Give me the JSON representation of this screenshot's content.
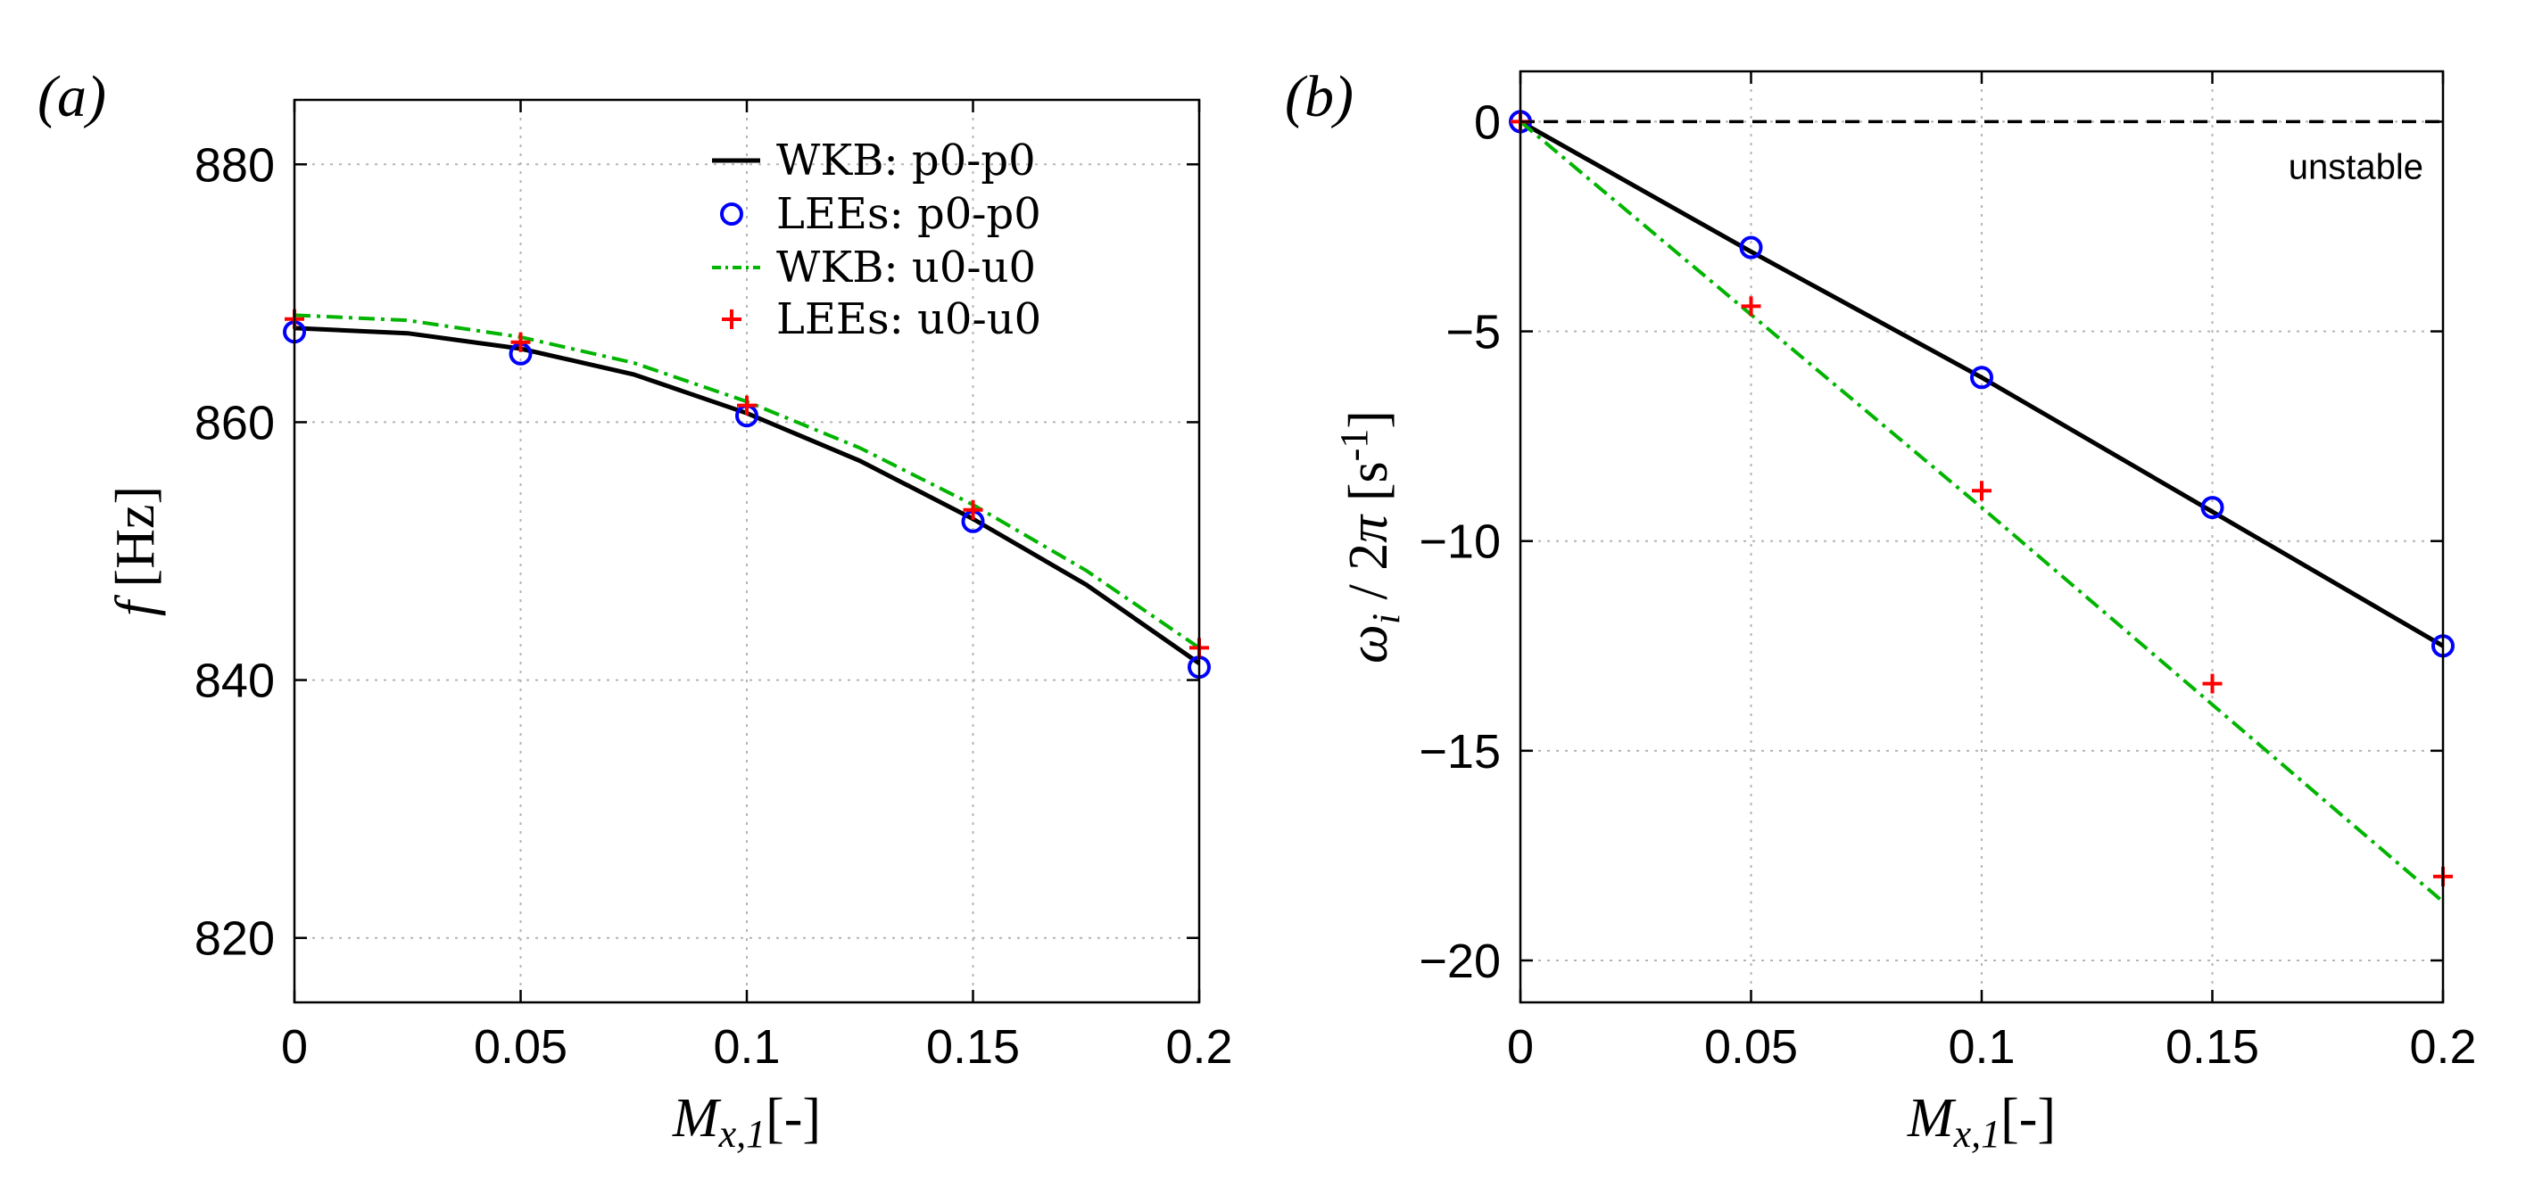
{
  "chart_data": [
    {
      "type": "line",
      "panel_label": "(a)",
      "xlabel": "M_{x,1} [-]",
      "ylabel": "f [Hz]",
      "xlim": [
        0,
        0.2
      ],
      "ylim": [
        815,
        885
      ],
      "xticks": [
        0,
        0.05,
        0.1,
        0.15,
        0.2
      ],
      "xtick_labels": [
        "0",
        "0.05",
        "0.1",
        "0.15",
        "0.2"
      ],
      "yticks": [
        820,
        840,
        860,
        880
      ],
      "ytick_labels": [
        "820",
        "840",
        "860",
        "880"
      ],
      "grid": true,
      "legend_position": "top-right",
      "series": [
        {
          "name": "WKB: p0-p0",
          "style": "solid",
          "color": "#000000",
          "x": [
            0,
            0.025,
            0.05,
            0.075,
            0.1,
            0.125,
            0.15,
            0.175,
            0.2
          ],
          "y": [
            867.3,
            866.9,
            865.7,
            863.7,
            860.7,
            857.0,
            852.5,
            847.4,
            841.3
          ]
        },
        {
          "name": "LEEs: p0-p0",
          "style": "circle",
          "color": "#0000ff",
          "x": [
            0,
            0.05,
            0.1,
            0.15,
            0.2
          ],
          "y": [
            867.0,
            865.3,
            860.5,
            852.3,
            841.0
          ]
        },
        {
          "name": "WKB: u0-u0",
          "style": "dashdot",
          "color": "#00b400",
          "x": [
            0,
            0.025,
            0.05,
            0.075,
            0.1,
            0.125,
            0.15,
            0.175,
            0.2
          ],
          "y": [
            868.3,
            867.9,
            866.6,
            864.6,
            861.6,
            858.0,
            853.6,
            848.5,
            842.5
          ]
        },
        {
          "name": "LEEs: u0-u0",
          "style": "plus",
          "color": "#ff0000",
          "x": [
            0,
            0.05,
            0.1,
            0.15,
            0.2
          ],
          "y": [
            868.0,
            866.2,
            861.3,
            853.2,
            842.5
          ]
        }
      ]
    },
    {
      "type": "line",
      "panel_label": "(b)",
      "xlabel": "M_{x,1} [-]",
      "ylabel": "ω_i / 2π [s^{-1}]",
      "xlim": [
        0,
        0.2
      ],
      "ylim": [
        -21,
        1.2
      ],
      "xticks": [
        0,
        0.05,
        0.1,
        0.15,
        0.2
      ],
      "xtick_labels": [
        "0",
        "0.05",
        "0.1",
        "0.15",
        "0.2"
      ],
      "yticks": [
        0,
        -5,
        -10,
        -15,
        -20
      ],
      "ytick_labels": [
        "0",
        "−5",
        "−10",
        "−15",
        "−20"
      ],
      "grid": true,
      "annotation": "unstable",
      "reference_line": {
        "y": 0,
        "style": "dashed",
        "color": "#000000"
      },
      "series": [
        {
          "name": "WKB: p0-p0",
          "style": "solid",
          "color": "#000000",
          "x": [
            0,
            0.05,
            0.1,
            0.15,
            0.2
          ],
          "y": [
            0,
            -3.1,
            -6.1,
            -9.3,
            -12.5
          ]
        },
        {
          "name": "LEEs: p0-p0",
          "style": "circle",
          "color": "#0000ff",
          "x": [
            0,
            0.05,
            0.1,
            0.15,
            0.2
          ],
          "y": [
            0,
            -3.0,
            -6.1,
            -9.2,
            -12.5
          ]
        },
        {
          "name": "WKB: u0-u0",
          "style": "dashdot",
          "color": "#00b400",
          "x": [
            0,
            0.05,
            0.1,
            0.15,
            0.2
          ],
          "y": [
            0,
            -4.6,
            -9.2,
            -13.9,
            -18.6
          ]
        },
        {
          "name": "LEEs: u0-u0",
          "style": "plus",
          "color": "#ff0000",
          "x": [
            0,
            0.05,
            0.1,
            0.15,
            0.2
          ],
          "y": [
            0,
            -4.4,
            -8.8,
            -13.4,
            -18.0
          ]
        }
      ]
    }
  ]
}
